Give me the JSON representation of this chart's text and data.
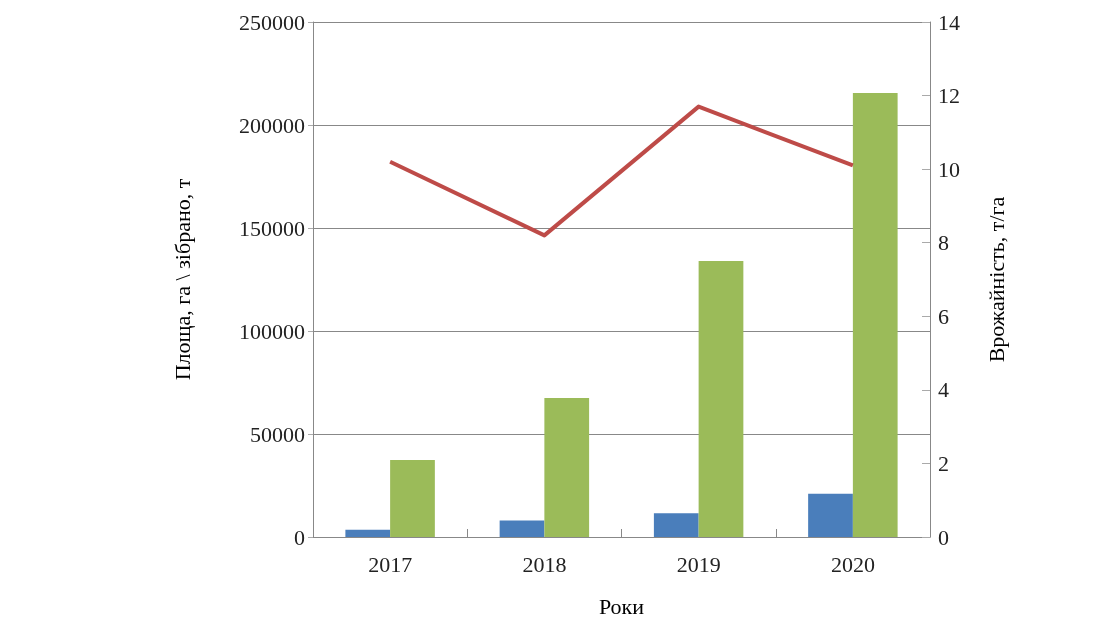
{
  "chart_data": {
    "type": "bar",
    "xlabel": "Роки",
    "ylabel": "Площа, га \\ зібрано, т",
    "y2label": "Врожайність, т/га",
    "categories": [
      "2017",
      "2018",
      "2019",
      "2020"
    ],
    "series": [
      {
        "color": "#4a7ebb",
        "values": [
          3500,
          8000,
          11500,
          21000
        ]
      },
      {
        "color": "#9bbb59",
        "values": [
          37400,
          67500,
          134000,
          215500
        ]
      },
      {
        "type": "line",
        "axis": "y2",
        "color": "#be4b48",
        "values": [
          10.2,
          8.2,
          11.7,
          10.1
        ]
      }
    ],
    "ylim": [
      0,
      250000
    ],
    "yticks": [
      0,
      50000,
      100000,
      150000,
      200000,
      250000
    ],
    "y2lim": [
      0,
      14
    ],
    "y2ticks": [
      0,
      2,
      4,
      6,
      8,
      10,
      12,
      14
    ],
    "grid": "y",
    "marker": "none"
  }
}
